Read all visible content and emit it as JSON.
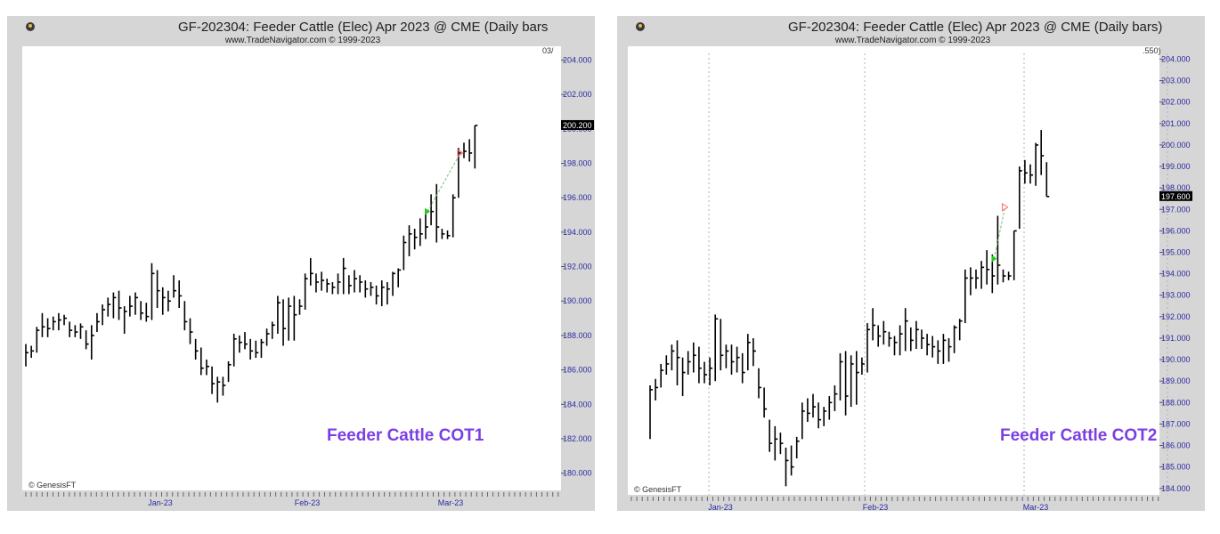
{
  "chart_data": [
    {
      "type": "ohlc",
      "title": "GF-202304:  Feeder Cattle (Elec) Apr 2023 @ CME  (Daily bars",
      "subtitle": "www.TradeNavigator.com © 1999-2023",
      "overlay_label": "Feeder Cattle COT1",
      "copyright": "© GenesisFT",
      "corner_label": "03/",
      "last_price_label": "200.200",
      "ylim": [
        179,
        204.8
      ],
      "y_ticks": [
        "180.000",
        "182.000",
        "184.000",
        "186.000",
        "188.000",
        "190.000",
        "192.000",
        "194.000",
        "196.000",
        "198.000",
        "200.000",
        "202.000",
        "204.000"
      ],
      "x_ticks": [
        "Jan-23",
        "Feb-23",
        "Mar-23"
      ],
      "accent_colors": {
        "bars": "#000000",
        "y_labels": "#2a2aa0",
        "overlay": "#7b3fe4",
        "signal_buy": "#22cc22",
        "signal_sell": "#ff6666"
      },
      "bars": [
        {
          "h": 187.5,
          "l": 186.2,
          "c": 187.0
        },
        {
          "h": 187.4,
          "l": 186.7,
          "c": 187.1
        },
        {
          "h": 188.5,
          "l": 187.0,
          "c": 188.3
        },
        {
          "h": 189.3,
          "l": 187.9,
          "c": 188.5
        },
        {
          "h": 189.0,
          "l": 187.9,
          "c": 188.4
        },
        {
          "h": 189.1,
          "l": 188.3,
          "c": 188.8
        },
        {
          "h": 189.3,
          "l": 188.3,
          "c": 188.9
        },
        {
          "h": 189.2,
          "l": 188.6,
          "c": 189.0
        },
        {
          "h": 188.8,
          "l": 187.9,
          "c": 188.3
        },
        {
          "h": 188.6,
          "l": 187.9,
          "c": 188.2
        },
        {
          "h": 188.7,
          "l": 187.8,
          "c": 188.5
        },
        {
          "h": 188.3,
          "l": 187.2,
          "c": 187.5
        },
        {
          "h": 188.6,
          "l": 186.6,
          "c": 188.0
        },
        {
          "h": 189.3,
          "l": 188.2,
          "c": 188.8
        },
        {
          "h": 189.8,
          "l": 188.6,
          "c": 189.5
        },
        {
          "h": 190.2,
          "l": 189.1,
          "c": 189.8
        },
        {
          "h": 190.5,
          "l": 189.0,
          "c": 190.2
        },
        {
          "h": 190.6,
          "l": 188.9,
          "c": 189.6
        },
        {
          "h": 189.7,
          "l": 188.1,
          "c": 189.4
        },
        {
          "h": 190.3,
          "l": 189.1,
          "c": 189.7
        },
        {
          "h": 190.5,
          "l": 189.2,
          "c": 190.2
        },
        {
          "h": 190.0,
          "l": 188.9,
          "c": 189.3
        },
        {
          "h": 189.9,
          "l": 188.8,
          "c": 189.1
        },
        {
          "h": 192.2,
          "l": 188.9,
          "c": 191.6
        },
        {
          "h": 191.8,
          "l": 189.6,
          "c": 190.6
        },
        {
          "h": 190.8,
          "l": 189.2,
          "c": 190.2
        },
        {
          "h": 190.6,
          "l": 189.4,
          "c": 190.0
        },
        {
          "h": 191.5,
          "l": 190.2,
          "c": 190.6
        },
        {
          "h": 191.2,
          "l": 189.6,
          "c": 190.3
        },
        {
          "h": 190.0,
          "l": 188.3,
          "c": 188.8
        },
        {
          "h": 189.0,
          "l": 187.5,
          "c": 188.2
        },
        {
          "h": 187.8,
          "l": 186.6,
          "c": 187.1
        },
        {
          "h": 187.3,
          "l": 185.7,
          "c": 186.1
        },
        {
          "h": 186.6,
          "l": 185.7,
          "c": 186.2
        },
        {
          "h": 186.2,
          "l": 184.6,
          "c": 185.2
        },
        {
          "h": 185.6,
          "l": 184.1,
          "c": 185.3
        },
        {
          "h": 185.6,
          "l": 184.5,
          "c": 185.1
        },
        {
          "h": 186.5,
          "l": 185.3,
          "c": 186.3
        },
        {
          "h": 188.1,
          "l": 186.2,
          "c": 187.8
        },
        {
          "h": 188.0,
          "l": 187.0,
          "c": 187.6
        },
        {
          "h": 188.2,
          "l": 187.2,
          "c": 187.5
        },
        {
          "h": 187.8,
          "l": 186.6,
          "c": 187.1
        },
        {
          "h": 187.7,
          "l": 186.7,
          "c": 187.0
        },
        {
          "h": 187.8,
          "l": 186.7,
          "c": 187.6
        },
        {
          "h": 188.4,
          "l": 187.4,
          "c": 188.1
        },
        {
          "h": 188.8,
          "l": 187.8,
          "c": 188.6
        },
        {
          "h": 190.3,
          "l": 188.1,
          "c": 189.9
        },
        {
          "h": 190.1,
          "l": 187.4,
          "c": 188.4
        },
        {
          "h": 190.2,
          "l": 187.7,
          "c": 189.7
        },
        {
          "h": 190.3,
          "l": 187.7,
          "c": 189.2
        },
        {
          "h": 190.1,
          "l": 189.2,
          "c": 189.7
        },
        {
          "h": 191.6,
          "l": 189.5,
          "c": 191.3
        },
        {
          "h": 192.5,
          "l": 190.9,
          "c": 191.6
        },
        {
          "h": 191.6,
          "l": 190.5,
          "c": 191.1
        },
        {
          "h": 191.7,
          "l": 190.6,
          "c": 191.2
        },
        {
          "h": 191.3,
          "l": 190.5,
          "c": 191.0
        },
        {
          "h": 191.1,
          "l": 190.4,
          "c": 190.8
        },
        {
          "h": 191.6,
          "l": 190.4,
          "c": 191.1
        },
        {
          "h": 192.5,
          "l": 190.4,
          "c": 191.9
        },
        {
          "h": 191.5,
          "l": 190.4,
          "c": 190.9
        },
        {
          "h": 191.8,
          "l": 190.5,
          "c": 191.3
        },
        {
          "h": 191.5,
          "l": 190.5,
          "c": 191.1
        },
        {
          "h": 191.2,
          "l": 190.2,
          "c": 190.7
        },
        {
          "h": 191.1,
          "l": 190.3,
          "c": 190.8
        },
        {
          "h": 190.9,
          "l": 189.8,
          "c": 190.3
        },
        {
          "h": 191.2,
          "l": 189.7,
          "c": 190.8
        },
        {
          "h": 191.1,
          "l": 189.8,
          "c": 190.7
        },
        {
          "h": 191.7,
          "l": 190.3,
          "c": 191.6
        },
        {
          "h": 191.9,
          "l": 190.8,
          "c": 191.8
        },
        {
          "h": 193.8,
          "l": 191.8,
          "c": 193.4
        },
        {
          "h": 194.4,
          "l": 192.6,
          "c": 193.9
        },
        {
          "h": 194.2,
          "l": 193.0,
          "c": 193.7
        },
        {
          "h": 194.8,
          "l": 193.2,
          "c": 193.9
        },
        {
          "h": 195.3,
          "l": 193.6,
          "c": 194.3
        },
        {
          "h": 196.2,
          "l": 194.4,
          "c": 195.2
        },
        {
          "h": 196.8,
          "l": 193.4,
          "c": 194.3
        },
        {
          "h": 194.2,
          "l": 193.6,
          "c": 193.9
        },
        {
          "h": 194.1,
          "l": 193.6,
          "c": 193.8
        },
        {
          "h": 196.2,
          "l": 193.7,
          "c": 196.0
        },
        {
          "h": 198.9,
          "l": 196.0,
          "c": 198.6
        },
        {
          "h": 199.2,
          "l": 198.3,
          "c": 198.7
        },
        {
          "h": 199.4,
          "l": 198.1,
          "c": 198.6
        },
        {
          "h": 200.2,
          "l": 197.7,
          "c": 200.2
        }
      ],
      "signals": [
        {
          "bar": 74,
          "type": "buy",
          "price": 195.2
        },
        {
          "bar": 80,
          "type": "sell",
          "price": 198.6
        }
      ]
    },
    {
      "type": "ohlc",
      "title": "GF-202304:  Feeder Cattle (Elec) Apr 2023 @ CME  (Daily bars)",
      "subtitle": "www.TradeNavigator.com © 1999-2023",
      "overlay_label": "Feeder Cattle COT2",
      "copyright": "© GenesisFT",
      "corner_label": ".550)",
      "last_price_label": "197.600",
      "ylim": [
        183.7,
        204.6
      ],
      "y_ticks": [
        "184.000",
        "185.000",
        "186.000",
        "187.000",
        "188.000",
        "189.000",
        "190.000",
        "191.000",
        "192.000",
        "193.000",
        "194.000",
        "195.000",
        "196.000",
        "197.000",
        "198.000",
        "199.000",
        "200.000",
        "201.000",
        "202.000",
        "203.000",
        "204.000"
      ],
      "x_ticks": [
        "Jan-23",
        "Feb-23",
        "Mar-23"
      ],
      "accent_colors": {
        "bars": "#000000",
        "y_labels": "#2a2aa0",
        "overlay": "#7b3fe4",
        "signal_buy": "#22cc22",
        "signal_sell": "#ff6666"
      },
      "bars": [
        {
          "h": 188.8,
          "l": 186.3,
          "c": 188.6
        },
        {
          "h": 189.1,
          "l": 188.1,
          "c": 188.7
        },
        {
          "h": 189.8,
          "l": 188.7,
          "c": 189.5
        },
        {
          "h": 190.2,
          "l": 189.3,
          "c": 189.8
        },
        {
          "h": 190.7,
          "l": 189.5,
          "c": 190.4
        },
        {
          "h": 190.9,
          "l": 188.8,
          "c": 190.1
        },
        {
          "h": 190.1,
          "l": 188.3,
          "c": 189.4
        },
        {
          "h": 190.4,
          "l": 189.3,
          "c": 189.9
        },
        {
          "h": 190.8,
          "l": 189.4,
          "c": 190.2
        },
        {
          "h": 190.6,
          "l": 188.9,
          "c": 189.6
        },
        {
          "h": 189.9,
          "l": 188.9,
          "c": 189.3
        },
        {
          "h": 190.1,
          "l": 188.8,
          "c": 189.6
        },
        {
          "h": 192.1,
          "l": 189.0,
          "c": 191.9
        },
        {
          "h": 191.9,
          "l": 189.5,
          "c": 190.2
        },
        {
          "h": 190.7,
          "l": 189.6,
          "c": 190.4
        },
        {
          "h": 190.7,
          "l": 189.3,
          "c": 189.9
        },
        {
          "h": 190.6,
          "l": 189.4,
          "c": 190.1
        },
        {
          "h": 190.3,
          "l": 188.9,
          "c": 189.4
        },
        {
          "h": 191.2,
          "l": 189.5,
          "c": 190.8
        },
        {
          "h": 191.0,
          "l": 189.7,
          "c": 190.4
        },
        {
          "h": 189.6,
          "l": 188.2,
          "c": 188.7
        },
        {
          "h": 188.7,
          "l": 187.3,
          "c": 187.7
        },
        {
          "h": 187.2,
          "l": 185.7,
          "c": 186.1
        },
        {
          "h": 186.9,
          "l": 185.3,
          "c": 186.3
        },
        {
          "h": 186.6,
          "l": 185.6,
          "c": 186.1
        },
        {
          "h": 185.9,
          "l": 184.1,
          "c": 185.3
        },
        {
          "h": 186.0,
          "l": 184.6,
          "c": 185.0
        },
        {
          "h": 186.4,
          "l": 185.4,
          "c": 186.2
        },
        {
          "h": 188.0,
          "l": 186.3,
          "c": 187.6
        },
        {
          "h": 188.2,
          "l": 187.1,
          "c": 187.5
        },
        {
          "h": 188.4,
          "l": 187.3,
          "c": 187.8
        },
        {
          "h": 188.0,
          "l": 186.8,
          "c": 187.2
        },
        {
          "h": 187.8,
          "l": 186.9,
          "c": 187.6
        },
        {
          "h": 188.3,
          "l": 187.2,
          "c": 188.0
        },
        {
          "h": 188.8,
          "l": 187.6,
          "c": 188.4
        },
        {
          "h": 190.3,
          "l": 188.1,
          "c": 189.9
        },
        {
          "h": 190.4,
          "l": 187.4,
          "c": 188.3
        },
        {
          "h": 190.2,
          "l": 187.8,
          "c": 189.8
        },
        {
          "h": 190.4,
          "l": 187.9,
          "c": 189.4
        },
        {
          "h": 190.1,
          "l": 189.3,
          "c": 189.8
        },
        {
          "h": 191.7,
          "l": 189.4,
          "c": 191.4
        },
        {
          "h": 192.4,
          "l": 190.9,
          "c": 191.6
        },
        {
          "h": 191.6,
          "l": 190.6,
          "c": 191.1
        },
        {
          "h": 191.8,
          "l": 190.7,
          "c": 191.3
        },
        {
          "h": 191.3,
          "l": 190.6,
          "c": 191.0
        },
        {
          "h": 191.1,
          "l": 190.2,
          "c": 190.8
        },
        {
          "h": 191.6,
          "l": 190.2,
          "c": 191.2
        },
        {
          "h": 192.4,
          "l": 190.4,
          "c": 191.8
        },
        {
          "h": 191.5,
          "l": 190.4,
          "c": 190.9
        },
        {
          "h": 191.8,
          "l": 190.5,
          "c": 191.4
        },
        {
          "h": 191.4,
          "l": 190.5,
          "c": 191.0
        },
        {
          "h": 191.2,
          "l": 190.2,
          "c": 190.7
        },
        {
          "h": 191.1,
          "l": 190.1,
          "c": 190.6
        },
        {
          "h": 190.9,
          "l": 189.8,
          "c": 190.4
        },
        {
          "h": 191.2,
          "l": 189.8,
          "c": 190.9
        },
        {
          "h": 191.0,
          "l": 189.9,
          "c": 190.6
        },
        {
          "h": 191.6,
          "l": 190.3,
          "c": 191.5
        },
        {
          "h": 191.9,
          "l": 190.9,
          "c": 191.8
        },
        {
          "h": 194.2,
          "l": 191.7,
          "c": 193.8
        },
        {
          "h": 194.3,
          "l": 193.0,
          "c": 193.8
        },
        {
          "h": 194.2,
          "l": 193.3,
          "c": 193.8
        },
        {
          "h": 194.6,
          "l": 193.3,
          "c": 194.3
        },
        {
          "h": 195.1,
          "l": 193.5,
          "c": 194.2
        },
        {
          "h": 194.9,
          "l": 193.1,
          "c": 193.9
        },
        {
          "h": 196.7,
          "l": 193.5,
          "c": 194.4
        },
        {
          "h": 194.2,
          "l": 193.6,
          "c": 193.9
        },
        {
          "h": 194.1,
          "l": 193.7,
          "c": 193.9
        },
        {
          "h": 196.0,
          "l": 193.7,
          "c": 196.0
        },
        {
          "h": 199.0,
          "l": 196.1,
          "c": 198.8
        },
        {
          "h": 199.3,
          "l": 198.2,
          "c": 198.7
        },
        {
          "h": 199.1,
          "l": 198.2,
          "c": 198.6
        },
        {
          "h": 200.1,
          "l": 198.1,
          "c": 200.0
        },
        {
          "h": 200.7,
          "l": 198.6,
          "c": 199.5
        },
        {
          "h": 199.2,
          "l": 197.6,
          "c": 197.6
        }
      ],
      "signals": [
        {
          "bar": 64,
          "type": "buy",
          "price": 194.7
        },
        {
          "bar": 66,
          "type": "sell",
          "price": 197.1
        }
      ]
    }
  ]
}
